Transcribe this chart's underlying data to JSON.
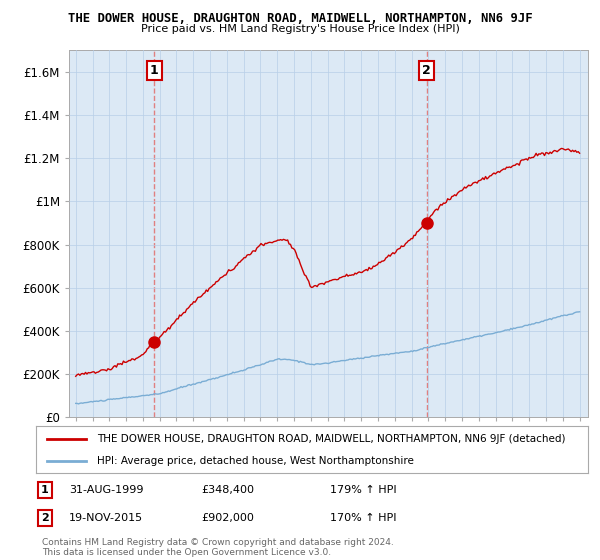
{
  "title": "THE DOWER HOUSE, DRAUGHTON ROAD, MAIDWELL, NORTHAMPTON, NN6 9JF",
  "subtitle": "Price paid vs. HM Land Registry's House Price Index (HPI)",
  "ylabel_ticks": [
    "£0",
    "£200K",
    "£400K",
    "£600K",
    "£800K",
    "£1M",
    "£1.2M",
    "£1.4M",
    "£1.6M"
  ],
  "ylabel_values": [
    0,
    200000,
    400000,
    600000,
    800000,
    1000000,
    1200000,
    1400000,
    1600000
  ],
  "ylim": [
    0,
    1700000
  ],
  "x_start_year": 1995,
  "x_end_year": 2025,
  "sale1": {
    "year": 1999.67,
    "value": 348400,
    "label": "1",
    "date_str": "31-AUG-1999",
    "hpi_pct": "179%"
  },
  "sale2": {
    "year": 2015.9,
    "value": 902000,
    "label": "2",
    "date_str": "19-NOV-2015",
    "hpi_pct": "170%"
  },
  "legend_line1": "THE DOWER HOUSE, DRAUGHTON ROAD, MAIDWELL, NORTHAMPTON, NN6 9JF (detached)",
  "legend_line2": "HPI: Average price, detached house, West Northamptonshire",
  "footer": "Contains HM Land Registry data © Crown copyright and database right 2024.\nThis data is licensed under the Open Government Licence v3.0.",
  "sale_color": "#cc0000",
  "hpi_color": "#7aadd4",
  "dashed_color": "#e08080",
  "bg_plot_color": "#dce9f5",
  "background_color": "#ffffff",
  "grid_color": "#b8cfe8"
}
